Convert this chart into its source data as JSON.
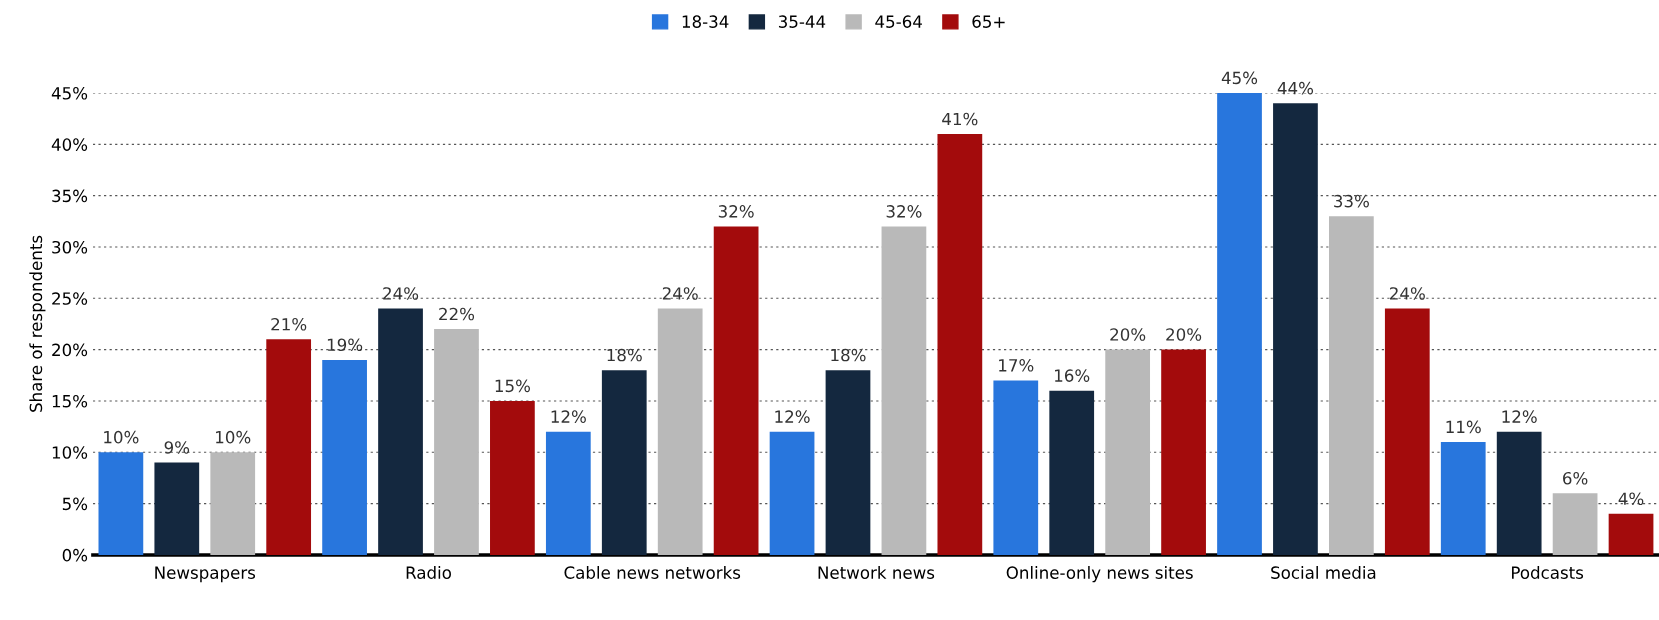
{
  "chart_data": {
    "type": "bar",
    "ylabel": "Share of respondents",
    "categories": [
      "Newspapers",
      "Radio",
      "Cable news networks",
      "Network news",
      "Online-only news sites",
      "Social media",
      "Podcasts"
    ],
    "series": [
      {
        "name": "18-34",
        "color": "#2876dd",
        "values": [
          10,
          19,
          12,
          12,
          17,
          45,
          11
        ],
        "value_labels": [
          "10%",
          "19%",
          "12%",
          "12%",
          "17%",
          "45%",
          "11%"
        ]
      },
      {
        "name": "35-44",
        "color": "#14283f",
        "values": [
          9,
          24,
          18,
          18,
          16,
          44,
          12
        ],
        "value_labels": [
          "9%",
          "24%",
          "18%",
          "18%",
          "16%",
          "44%",
          "12%"
        ]
      },
      {
        "name": "45-64",
        "color": "#b9b9b9",
        "values": [
          10,
          22,
          24,
          32,
          20,
          33,
          6
        ],
        "value_labels": [
          "10%",
          "22%",
          "24%",
          "32%",
          "20%",
          "33%",
          "6%"
        ]
      },
      {
        "name": "65+",
        "color": "#a30b0c",
        "values": [
          21,
          15,
          32,
          41,
          20,
          24,
          4
        ],
        "value_labels": [
          "21%",
          "15%",
          "32%",
          "41%",
          "20%",
          "24%",
          "4%"
        ]
      }
    ],
    "ylim": [
      0,
      45
    ],
    "yticks": [
      {
        "value": 0,
        "label": "0%"
      },
      {
        "value": 5,
        "label": "5%"
      },
      {
        "value": 10,
        "label": "10%"
      },
      {
        "value": 15,
        "label": "15%"
      },
      {
        "value": 20,
        "label": "20%"
      },
      {
        "value": 25,
        "label": "25%"
      },
      {
        "value": 30,
        "label": "30%"
      },
      {
        "value": 35,
        "label": "35%"
      },
      {
        "value": 40,
        "label": "40%"
      },
      {
        "value": 45,
        "label": "45%"
      }
    ],
    "grid": "y",
    "legend": "top"
  }
}
